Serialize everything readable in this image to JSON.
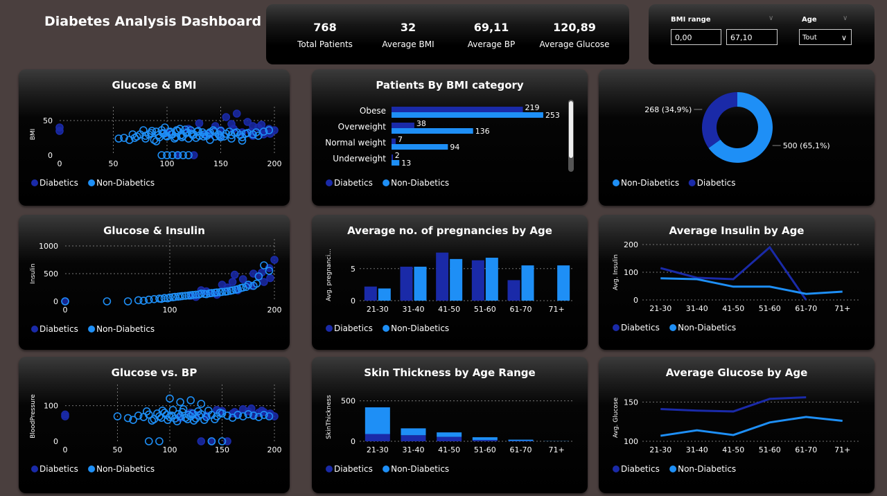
{
  "title": "Diabetes Analysis Dashboard",
  "colors": {
    "diabetic": "#1a2aa8",
    "non_diabetic": "#1e8ff6",
    "background": "#4a3f3e"
  },
  "kpis": [
    {
      "value": "768",
      "label": "Total Patients"
    },
    {
      "value": "32",
      "label": "Average BMI"
    },
    {
      "value": "69,11",
      "label": "Average BP"
    },
    {
      "value": "120,89",
      "label": "Average Glucose"
    }
  ],
  "slicers": {
    "bmi": {
      "label": "BMI range",
      "min": "0,00",
      "max": "67,10",
      "chevron_icon": "chevron-down-icon"
    },
    "age": {
      "label": "Age",
      "value": "Tout",
      "chevron_icon": "chevron-down-icon"
    }
  },
  "legend": {
    "diabetic": "Diabetics",
    "non_diabetic": "Non-Diabetics"
  },
  "chart_data": [
    {
      "id": "glucose_bmi",
      "type": "scatter",
      "title": "Glucose & BMI",
      "xlabel": "",
      "ylabel": "BMI",
      "xlim": [
        0,
        200
      ],
      "ylim": [
        0,
        60
      ],
      "xticks": [
        0,
        50,
        100,
        150,
        200
      ],
      "yticks": [
        0,
        50
      ],
      "series": [
        {
          "name": "Diabetics",
          "x": [
            0,
            0,
            120,
            135,
            145,
            150,
            160,
            170,
            175,
            180,
            185,
            190,
            195,
            155,
            165,
            110,
            125,
            140,
            100,
            130,
            180,
            190,
            200,
            162,
            150,
            178,
            188,
            196
          ],
          "y": [
            35,
            40,
            38,
            30,
            42,
            36,
            45,
            33,
            48,
            28,
            40,
            35,
            38,
            55,
            60,
            0,
            0,
            30,
            32,
            46,
            42,
            30,
            36,
            38,
            27,
            34,
            44,
            31
          ]
        },
        {
          "name": "Non-Diabetics",
          "x": [
            70,
            75,
            80,
            85,
            88,
            90,
            92,
            95,
            97,
            100,
            102,
            105,
            108,
            110,
            112,
            115,
            118,
            120,
            122,
            125,
            128,
            130,
            135,
            140,
            145,
            150,
            155,
            160,
            165,
            170,
            175,
            180,
            185,
            190,
            195,
            60,
            65,
            78,
            83,
            93,
            98,
            103,
            107,
            113,
            117,
            123,
            127,
            133,
            137,
            143,
            148,
            153,
            158,
            163,
            168,
            173,
            183,
            55,
            68,
            72,
            86,
            96,
            99,
            104,
            109,
            114,
            119,
            124,
            129,
            134,
            139,
            144,
            149,
            95,
            100,
            105,
            110,
            115,
            120,
            80,
            90,
            140,
            150,
            160,
            170
          ],
          "y": [
            25,
            30,
            28,
            32,
            22,
            34,
            29,
            36,
            31,
            27,
            33,
            30,
            26,
            35,
            38,
            28,
            32,
            24,
            36,
            30,
            34,
            28,
            30,
            33,
            27,
            35,
            31,
            29,
            33,
            26,
            32,
            30,
            28,
            34,
            36,
            25,
            22,
            36,
            30,
            26,
            40,
            34,
            24,
            29,
            37,
            31,
            25,
            33,
            28,
            36,
            30,
            27,
            34,
            32,
            29,
            31,
            33,
            24,
            30,
            27,
            35,
            32,
            28,
            30,
            36,
            26,
            33,
            29,
            35,
            27,
            31,
            34,
            28,
            0,
            0,
            0,
            0,
            0,
            0,
            24,
            20,
            22,
            26,
            24,
            21
          ]
        }
      ]
    },
    {
      "id": "bmi_category",
      "type": "bar",
      "orientation": "horizontal",
      "title": "Patients By BMI category",
      "categories": [
        "Obese",
        "Overweight",
        "Normal weight",
        "Underweight"
      ],
      "series": [
        {
          "name": "Diabetics",
          "values": [
            219,
            38,
            7,
            2
          ]
        },
        {
          "name": "Non-Diabetics",
          "values": [
            253,
            136,
            94,
            13
          ]
        }
      ]
    },
    {
      "id": "diabetic_split",
      "type": "pie",
      "title": "",
      "slices": [
        {
          "name": "Non-Diabetics",
          "value": 500,
          "label": "500 (65,1%)"
        },
        {
          "name": "Diabetics",
          "value": 268,
          "label": "268 (34,9%)"
        }
      ]
    },
    {
      "id": "glucose_insulin",
      "type": "scatter",
      "title": "Glucose & Insulin",
      "xlabel": "",
      "ylabel": "Insulin",
      "xlim": [
        0,
        200
      ],
      "ylim": [
        0,
        1000
      ],
      "xticks": [
        0,
        100,
        200
      ],
      "yticks": [
        0,
        500,
        1000
      ],
      "series": [
        {
          "name": "Diabetics",
          "x": [
            0,
            120,
            130,
            140,
            150,
            155,
            160,
            165,
            170,
            175,
            180,
            185,
            190,
            195,
            200,
            145,
            135,
            125,
            178,
            188,
            196,
            162
          ],
          "y": [
            0,
            100,
            200,
            150,
            300,
            250,
            350,
            200,
            400,
            300,
            500,
            450,
            350,
            600,
            750,
            120,
            180,
            80,
            280,
            520,
            420,
            480
          ]
        },
        {
          "name": "Non-Diabetics",
          "x": [
            40,
            60,
            70,
            80,
            85,
            90,
            95,
            100,
            105,
            110,
            115,
            120,
            125,
            130,
            135,
            140,
            145,
            150,
            155,
            160,
            165,
            170,
            175,
            180,
            185,
            190,
            195,
            0,
            75,
            92,
            98,
            103,
            108,
            112,
            118,
            122,
            128,
            133,
            138,
            143,
            148,
            153,
            158,
            163,
            168,
            173,
            183
          ],
          "y": [
            0,
            0,
            20,
            30,
            40,
            50,
            60,
            70,
            80,
            90,
            100,
            110,
            120,
            140,
            130,
            150,
            160,
            170,
            180,
            200,
            220,
            250,
            300,
            280,
            450,
            650,
            550,
            0,
            10,
            45,
            55,
            75,
            85,
            95,
            105,
            115,
            125,
            135,
            145,
            155,
            165,
            175,
            190,
            210,
            240,
            260,
            320
          ]
        }
      ]
    },
    {
      "id": "preg_by_age",
      "type": "bar",
      "title": "Average no. of pregnancies by Age",
      "xlabel": "",
      "ylabel": "Avg. pregnanci...",
      "ylim": [
        0,
        8
      ],
      "yticks": [
        0,
        5
      ],
      "categories": [
        "21-30",
        "31-40",
        "41-50",
        "51-60",
        "61-70",
        "71+"
      ],
      "series": [
        {
          "name": "Diabetics",
          "values": [
            2.2,
            5.3,
            7.5,
            6.3,
            3.2,
            null
          ]
        },
        {
          "name": "Non-Diabetics",
          "values": [
            1.9,
            5.3,
            6.5,
            6.7,
            5.5,
            5.5
          ]
        }
      ]
    },
    {
      "id": "insulin_by_age",
      "type": "line",
      "title": "Average Insulin by Age",
      "xlabel": "",
      "ylabel": "Avg. Insulin",
      "ylim": [
        0,
        200
      ],
      "yticks": [
        0,
        100,
        200
      ],
      "categories": [
        "21-30",
        "31-40",
        "41-50",
        "51-60",
        "61-70",
        "71+"
      ],
      "series": [
        {
          "name": "Diabetics",
          "values": [
            115,
            80,
            75,
            190,
            0,
            null
          ]
        },
        {
          "name": "Non-Diabetics",
          "values": [
            78,
            75,
            48,
            48,
            22,
            30
          ]
        }
      ]
    },
    {
      "id": "glucose_bp",
      "type": "scatter",
      "title": "Glucose vs. BP",
      "xlabel": "",
      "ylabel": "BloodPressure",
      "xlim": [
        0,
        200
      ],
      "ylim": [
        0,
        140
      ],
      "xticks": [
        0,
        50,
        100,
        150,
        200
      ],
      "yticks": [
        0,
        100
      ],
      "series": [
        {
          "name": "Diabetics",
          "x": [
            0,
            0,
            120,
            135,
            150,
            160,
            170,
            180,
            190,
            200,
            145,
            165,
            175,
            185,
            195,
            155,
            140,
            130,
            178,
            188,
            196,
            162,
            110,
            125
          ],
          "y": [
            75,
            70,
            80,
            72,
            85,
            78,
            90,
            75,
            82,
            70,
            88,
            76,
            84,
            80,
            74,
            0,
            0,
            0,
            92,
            86,
            78,
            82,
            66,
            74
          ]
        },
        {
          "name": "Non-Diabetics",
          "x": [
            50,
            60,
            65,
            70,
            75,
            80,
            85,
            88,
            90,
            92,
            95,
            97,
            100,
            102,
            105,
            108,
            110,
            112,
            115,
            118,
            120,
            122,
            125,
            128,
            130,
            135,
            140,
            145,
            150,
            155,
            160,
            165,
            170,
            175,
            180,
            185,
            190,
            195,
            100,
            110,
            120,
            130,
            140,
            150,
            90,
            80,
            78,
            83,
            93,
            98,
            103,
            107,
            113,
            117,
            123,
            127,
            133,
            137,
            143,
            148
          ],
          "y": [
            70,
            65,
            60,
            72,
            68,
            75,
            62,
            78,
            70,
            66,
            80,
            74,
            68,
            72,
            64,
            76,
            70,
            82,
            66,
            74,
            70,
            78,
            64,
            72,
            76,
            68,
            74,
            70,
            78,
            72,
            66,
            74,
            70,
            76,
            72,
            68,
            74,
            70,
            120,
            110,
            115,
            105,
            0,
            0,
            0,
            0,
            84,
            58,
            86,
            60,
            88,
            56,
            90,
            62,
            58,
            84,
            60,
            86,
            62,
            80
          ]
        }
      ]
    },
    {
      "id": "skin_by_age",
      "type": "bar",
      "stacked": true,
      "title": "Skin Thickness by Age Range",
      "xlabel": "",
      "ylabel": "SkinThickness",
      "ylim": [
        0,
        600
      ],
      "yticks": [
        0,
        500
      ],
      "categories": [
        "21-30",
        "31-40",
        "41-50",
        "51-60",
        "61-70",
        "71+"
      ],
      "series": [
        {
          "name": "Diabetics",
          "values": [
            90,
            75,
            55,
            15,
            5,
            0
          ]
        },
        {
          "name": "Non-Diabetics",
          "values": [
            330,
            85,
            55,
            35,
            15,
            2
          ]
        }
      ]
    },
    {
      "id": "glucose_by_age",
      "type": "line",
      "title": "Average Glucose by Age",
      "xlabel": "",
      "ylabel": "Avg. Glucose",
      "ylim": [
        100,
        160
      ],
      "yticks": [
        100,
        150
      ],
      "categories": [
        "21-30",
        "31-40",
        "41-50",
        "51-60",
        "61-70",
        "71+"
      ],
      "series": [
        {
          "name": "Diabetics",
          "values": [
            141,
            139,
            138,
            154,
            156,
            null
          ]
        },
        {
          "name": "Non-Diabetics",
          "values": [
            107,
            114,
            108,
            124,
            131,
            126
          ]
        }
      ]
    }
  ]
}
